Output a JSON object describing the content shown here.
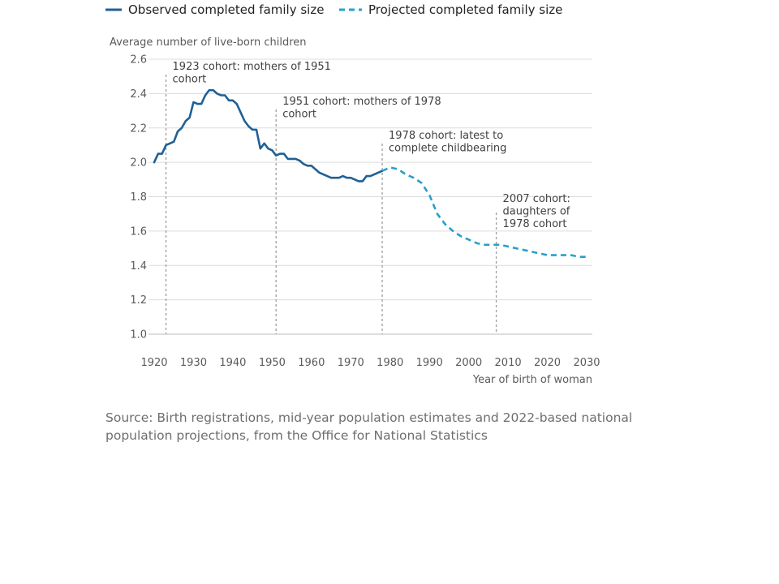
{
  "chart_data": {
    "type": "line",
    "title": "",
    "ylabel": "Average number of live-born children",
    "xlabel": "Year of birth of woman",
    "xlim": [
      1920,
      2030
    ],
    "ylim": [
      1.0,
      2.6
    ],
    "grid": true,
    "legend_position": "top-left",
    "x_ticks": [
      1920,
      1930,
      1940,
      1950,
      1960,
      1970,
      1980,
      1990,
      2000,
      2010,
      2020,
      2030
    ],
    "y_ticks": [
      1.0,
      1.2,
      1.4,
      1.6,
      1.8,
      2.0,
      2.2,
      2.4,
      2.6
    ],
    "series": [
      {
        "name": "Observed completed family size",
        "color": "#206095",
        "style": "solid",
        "x": [
          1920,
          1921,
          1922,
          1923,
          1924,
          1925,
          1926,
          1927,
          1928,
          1929,
          1930,
          1931,
          1932,
          1933,
          1934,
          1935,
          1936,
          1937,
          1938,
          1939,
          1940,
          1941,
          1942,
          1943,
          1944,
          1945,
          1946,
          1947,
          1948,
          1949,
          1950,
          1951,
          1952,
          1953,
          1954,
          1955,
          1956,
          1957,
          1958,
          1959,
          1960,
          1961,
          1962,
          1963,
          1964,
          1965,
          1966,
          1967,
          1968,
          1969,
          1970,
          1971,
          1972,
          1973,
          1974,
          1975,
          1976,
          1977,
          1978
        ],
        "values": [
          2.0,
          2.05,
          2.05,
          2.1,
          2.11,
          2.12,
          2.18,
          2.2,
          2.24,
          2.26,
          2.35,
          2.34,
          2.34,
          2.39,
          2.42,
          2.42,
          2.4,
          2.39,
          2.39,
          2.36,
          2.36,
          2.34,
          2.29,
          2.24,
          2.21,
          2.19,
          2.19,
          2.08,
          2.11,
          2.08,
          2.07,
          2.04,
          2.05,
          2.05,
          2.02,
          2.02,
          2.02,
          2.01,
          1.99,
          1.98,
          1.98,
          1.96,
          1.94,
          1.93,
          1.92,
          1.91,
          1.91,
          1.91,
          1.92,
          1.91,
          1.91,
          1.9,
          1.89,
          1.89,
          1.92,
          1.92,
          1.93,
          1.94,
          1.95
        ]
      },
      {
        "name": "Projected completed family size",
        "color": "#27a0cc",
        "style": "dashed",
        "x": [
          1978,
          1980,
          1982,
          1984,
          1986,
          1988,
          1990,
          1992,
          1994,
          1996,
          1998,
          2000,
          2002,
          2004,
          2006,
          2008,
          2010,
          2012,
          2014,
          2016,
          2018,
          2020,
          2022,
          2024,
          2026,
          2028,
          2030
        ],
        "values": [
          1.95,
          1.97,
          1.96,
          1.93,
          1.91,
          1.88,
          1.81,
          1.7,
          1.64,
          1.6,
          1.57,
          1.55,
          1.53,
          1.52,
          1.52,
          1.52,
          1.51,
          1.5,
          1.49,
          1.48,
          1.47,
          1.46,
          1.46,
          1.46,
          1.46,
          1.45,
          1.45
        ]
      }
    ],
    "annotations": [
      {
        "x": 1923,
        "text_lines": [
          "1923 cohort: mothers of 1951",
          "cohort"
        ]
      },
      {
        "x": 1951,
        "text_lines": [
          "1951 cohort: mothers of 1978",
          "cohort"
        ]
      },
      {
        "x": 1978,
        "text_lines": [
          "1978 cohort: latest to",
          "complete childbearing"
        ]
      },
      {
        "x": 2007,
        "text_lines": [
          "2007 cohort:",
          "daughters of",
          "1978 cohort"
        ]
      }
    ]
  },
  "source_text": "Source: Birth registrations, mid-year population estimates and 2022-based national population projections, from the Office for National Statistics"
}
